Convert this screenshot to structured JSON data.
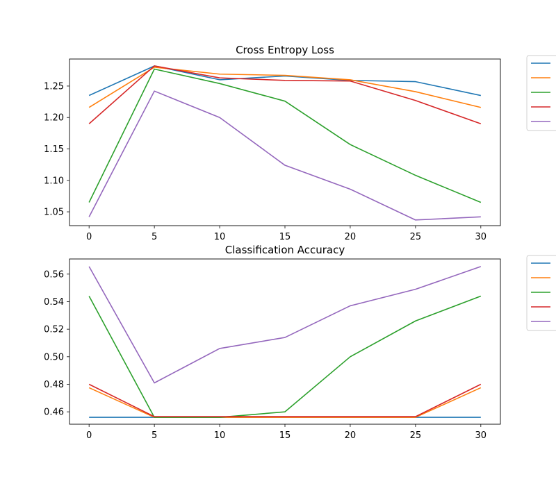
{
  "chart_data": [
    {
      "type": "line",
      "title": "Cross Entropy Loss",
      "x": [
        0,
        5,
        10,
        15,
        20,
        25,
        30
      ],
      "xticks": [
        "0",
        "5",
        "10",
        "15",
        "20",
        "25",
        "30"
      ],
      "yticks": [
        "1.05",
        "1.10",
        "1.15",
        "1.20",
        "1.25"
      ],
      "xlim": [
        -1.5,
        31.5
      ],
      "ylim": [
        1.028,
        1.293
      ],
      "legend_placement": "outside-top-right",
      "series": [
        {
          "color": "#1f77b4",
          "values": [
            1.235,
            1.282,
            1.26,
            1.266,
            1.259,
            1.257,
            1.235
          ]
        },
        {
          "color": "#ff7f0e",
          "values": [
            1.216,
            1.28,
            1.269,
            1.267,
            1.26,
            1.241,
            1.216
          ]
        },
        {
          "color": "#2ca02c",
          "values": [
            1.065,
            1.277,
            1.254,
            1.226,
            1.157,
            1.108,
            1.065
          ]
        },
        {
          "color": "#d62728",
          "values": [
            1.19,
            1.282,
            1.263,
            1.259,
            1.258,
            1.227,
            1.19
          ]
        },
        {
          "color": "#9467bd",
          "values": [
            1.042,
            1.242,
            1.2,
            1.124,
            1.086,
            1.037,
            1.042
          ]
        }
      ]
    },
    {
      "type": "line",
      "title": "Classification Accuracy",
      "x": [
        0,
        5,
        10,
        15,
        20,
        25,
        30
      ],
      "xticks": [
        "0",
        "5",
        "10",
        "15",
        "20",
        "25",
        "30"
      ],
      "yticks": [
        "0.46",
        "0.48",
        "0.50",
        "0.52",
        "0.54",
        "0.56"
      ],
      "xlim": [
        -1.5,
        31.5
      ],
      "ylim": [
        0.451,
        0.571
      ],
      "legend_placement": "outside-top-right",
      "series": [
        {
          "color": "#1f77b4",
          "values": [
            0.456,
            0.456,
            0.456,
            0.456,
            0.456,
            0.456,
            0.456
          ]
        },
        {
          "color": "#ff7f0e",
          "values": [
            0.4775,
            0.456,
            0.456,
            0.456,
            0.456,
            0.456,
            0.4775
          ]
        },
        {
          "color": "#2ca02c",
          "values": [
            0.544,
            0.456,
            0.456,
            0.46,
            0.5,
            0.526,
            0.544
          ]
        },
        {
          "color": "#d62728",
          "values": [
            0.48,
            0.4565,
            0.4565,
            0.4565,
            0.4565,
            0.4565,
            0.48
          ]
        },
        {
          "color": "#9467bd",
          "values": [
            0.5655,
            0.481,
            0.506,
            0.514,
            0.537,
            0.549,
            0.5655
          ]
        }
      ]
    }
  ]
}
